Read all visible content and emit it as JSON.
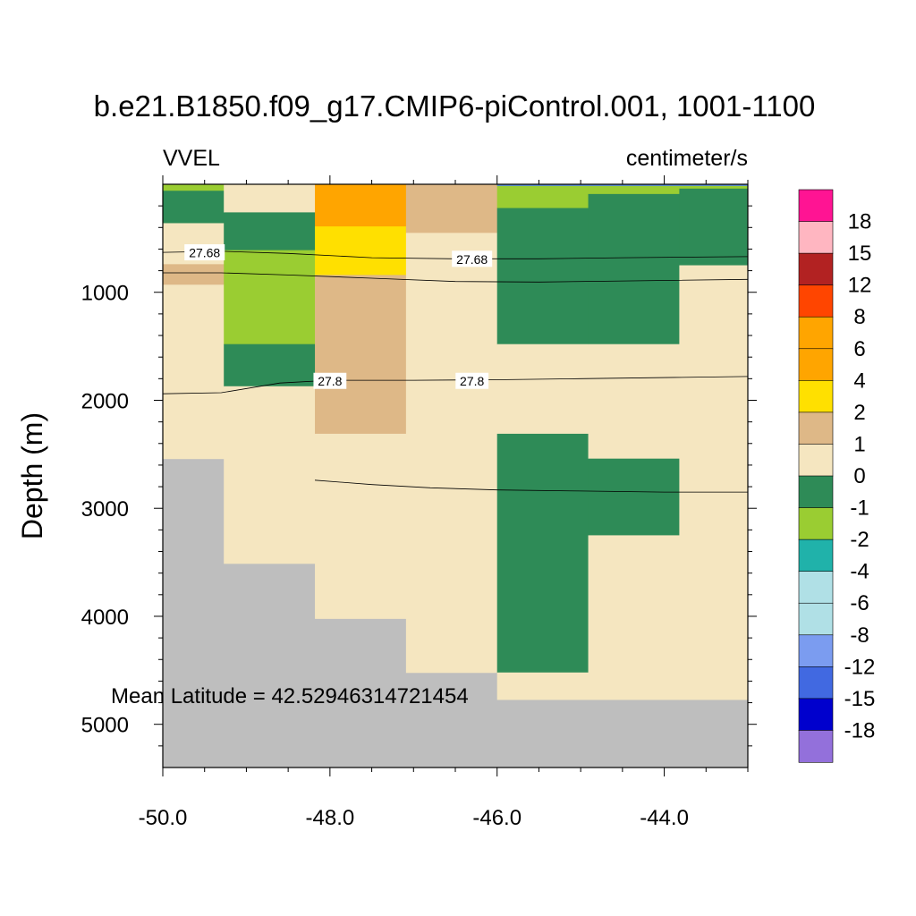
{
  "chart_data": {
    "type": "heatmap",
    "title": "b.e21.B1850.f09_g17.CMIP6-piControl.001, 1001-1100",
    "left_label": "VVEL",
    "right_label": "centimeter/s",
    "ylabel": "Depth (m)",
    "xlabel": "",
    "xlim": [
      -50.0,
      -43.0
    ],
    "ylim": [
      0,
      5400
    ],
    "y_inverted": true,
    "x_ticks": [
      -50.0,
      -48.0,
      -46.0,
      -44.0
    ],
    "x_tick_labels": [
      "-50.0",
      "-48.0",
      "-46.0",
      "-44.0"
    ],
    "y_ticks": [
      1000,
      2000,
      3000,
      4000,
      5000
    ],
    "y_tick_labels": [
      "1000",
      "2000",
      "3000",
      "4000",
      "5000"
    ],
    "annotation": "Mean Latitude = 42.52946314721454",
    "colorbar": {
      "levels": [
        "18",
        "15",
        "12",
        "8",
        "6",
        "4",
        "2",
        "1",
        "0",
        "-1",
        "-2",
        "-4",
        "-6",
        "-8",
        "-12",
        "-15",
        "-18"
      ],
      "colors": [
        "#FF1493",
        "#FFB6C1",
        "#B22222",
        "#FF4500",
        "#FFA500",
        "#FFA500",
        "#FFE000",
        "#DEB887",
        "#F5E6C0",
        "#2E8B57",
        "#9ACD32",
        "#20B2AA",
        "#B0E0E6",
        "#B0E0E6",
        "#7B9CF0",
        "#4169E1",
        "#0000CD",
        "#9370DB"
      ]
    },
    "land_color": "#BEBEBE",
    "columns": [
      {
        "x0": -50.0,
        "x1": -49.27,
        "bottom": 2540,
        "cells": [
          {
            "z0": 0,
            "z1": 60,
            "value": -2
          },
          {
            "z0": 60,
            "z1": 360,
            "value": -0.5
          },
          {
            "z0": 360,
            "z1": 740,
            "value": 0.5
          },
          {
            "z0": 740,
            "z1": 930,
            "value": 1.5
          },
          {
            "z0": 930,
            "z1": 2540,
            "value": 0.5
          }
        ]
      },
      {
        "x0": -49.27,
        "x1": -48.18,
        "bottom": 3510,
        "cells": [
          {
            "z0": 0,
            "z1": 260,
            "value": 0.5
          },
          {
            "z0": 260,
            "z1": 610,
            "value": -0.5
          },
          {
            "z0": 610,
            "z1": 1480,
            "value": -1.5
          },
          {
            "z0": 1480,
            "z1": 1870,
            "value": -0.5
          },
          {
            "z0": 1870,
            "z1": 3510,
            "value": 0.5
          }
        ]
      },
      {
        "x0": -48.18,
        "x1": -47.09,
        "bottom": 4020,
        "cells": [
          {
            "z0": 0,
            "z1": 390,
            "value": 5
          },
          {
            "z0": 390,
            "z1": 840,
            "value": 3
          },
          {
            "z0": 840,
            "z1": 2310,
            "value": 1.5
          },
          {
            "z0": 2310,
            "z1": 4020,
            "value": 0.5
          }
        ]
      },
      {
        "x0": -47.09,
        "x1": -46.0,
        "bottom": 4520,
        "cells": [
          {
            "z0": 0,
            "z1": 450,
            "value": 1.5
          },
          {
            "z0": 450,
            "z1": 4520,
            "value": 0.5
          }
        ]
      },
      {
        "x0": -46.0,
        "x1": -44.91,
        "bottom": 4770,
        "cells": [
          {
            "z0": 0,
            "z1": 220,
            "value": -1.5
          },
          {
            "z0": 220,
            "z1": 1480,
            "value": -0.5
          },
          {
            "z0": 1480,
            "z1": 2310,
            "value": 0.5
          },
          {
            "z0": 2310,
            "z1": 4520,
            "value": -0.5
          },
          {
            "z0": 4520,
            "z1": 4770,
            "value": 0.5
          }
        ]
      },
      {
        "x0": -44.91,
        "x1": -43.82,
        "bottom": 4770,
        "cells": [
          {
            "z0": 0,
            "z1": 90,
            "value": -1.5
          },
          {
            "z0": 90,
            "z1": 1480,
            "value": -0.5
          },
          {
            "z0": 1480,
            "z1": 2540,
            "value": 0.5
          },
          {
            "z0": 2540,
            "z1": 3250,
            "value": -0.5
          },
          {
            "z0": 3250,
            "z1": 4770,
            "value": 0.5
          }
        ]
      },
      {
        "x0": -43.82,
        "x1": -43.0,
        "bottom": 4770,
        "cells": [
          {
            "z0": 0,
            "z1": 40,
            "value": -1.5
          },
          {
            "z0": 40,
            "z1": 750,
            "value": -0.5
          },
          {
            "z0": 750,
            "z1": 4770,
            "value": 0.5
          }
        ]
      }
    ],
    "contours": [
      {
        "label": "27.68",
        "label_at": [
          [
            -49.5,
            630
          ],
          [
            -46.3,
            690
          ]
        ],
        "points": [
          [
            -50.0,
            630
          ],
          [
            -49.3,
            620
          ],
          [
            -48.5,
            640
          ],
          [
            -47.5,
            680
          ],
          [
            -46.5,
            690
          ],
          [
            -45.5,
            690
          ],
          [
            -44.5,
            680
          ],
          [
            -43.0,
            670
          ]
        ]
      },
      {
        "label": "",
        "label_at": [],
        "points": [
          [
            -50.0,
            820
          ],
          [
            -49.3,
            820
          ],
          [
            -48.5,
            840
          ],
          [
            -47.5,
            870
          ],
          [
            -46.5,
            900
          ],
          [
            -45.5,
            905
          ],
          [
            -44.5,
            895
          ],
          [
            -43.0,
            880
          ]
        ]
      },
      {
        "label": "27.8",
        "label_at": [
          [
            -48.0,
            1820
          ],
          [
            -46.3,
            1820
          ]
        ],
        "points": [
          [
            -50.0,
            1940
          ],
          [
            -49.3,
            1930
          ],
          [
            -48.6,
            1840
          ],
          [
            -48.0,
            1815
          ],
          [
            -47.0,
            1815
          ],
          [
            -46.0,
            1810
          ],
          [
            -45.0,
            1800
          ],
          [
            -43.0,
            1780
          ]
        ]
      },
      {
        "label": "",
        "label_at": [],
        "points": [
          [
            -48.18,
            2740
          ],
          [
            -47.5,
            2780
          ],
          [
            -46.8,
            2810
          ],
          [
            -46.0,
            2830
          ],
          [
            -45.0,
            2840
          ],
          [
            -44.0,
            2850
          ],
          [
            -43.0,
            2850
          ]
        ]
      }
    ],
    "surface_strip": {
      "x0": -46.0,
      "x1": -43.0,
      "color": "#5B8FC7"
    }
  }
}
